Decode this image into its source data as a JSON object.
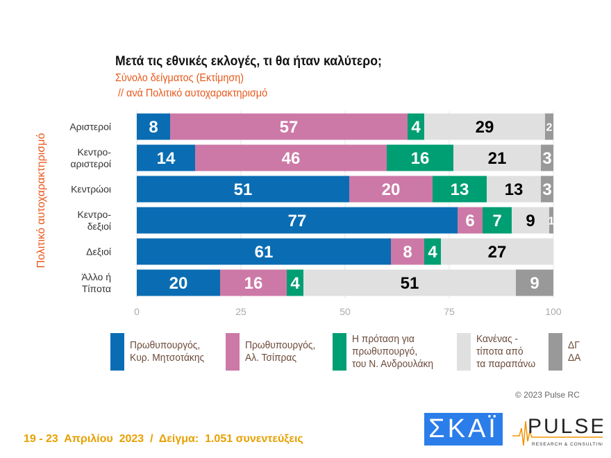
{
  "chart_data": {
    "type": "bar",
    "orientation": "horizontal",
    "stacked": true,
    "title": "Μετά τις εθνικές εκλογές, τι θα ήταν καλύτερο;",
    "subtitle": [
      "Σύνολο δείγματος  (Εκτίμηση)",
      " // ανά Πολιτικό αυτοχαρακτηρισμό"
    ],
    "ylabel": "Πολιτικό αυτοχαρακτηρισμό",
    "xlim": [
      0,
      100
    ],
    "xticks": [
      "0",
      "25",
      "50",
      "75",
      "100"
    ],
    "grid": true,
    "legend_position": "bottom",
    "categories": [
      [
        "Αριστεροί"
      ],
      [
        "Κεντρο-",
        "αριστεροί"
      ],
      [
        "Κεντρώοι"
      ],
      [
        "Κεντρο-",
        "δεξιοί"
      ],
      [
        "Δεξιοί"
      ],
      [
        "Άλλο ή",
        "Τίποτα"
      ]
    ],
    "series": [
      {
        "name": [
          "Πρωθυπουργός,",
          "Κυρ. Μητσοτάκης"
        ],
        "color": "#0a6db3",
        "label_color": "#ffffff",
        "values": [
          8,
          14,
          51,
          77,
          61,
          20
        ]
      },
      {
        "name": [
          "Πρωθυπουργός,",
          "Αλ. Τσίπρας"
        ],
        "color": "#cc79a7",
        "label_color": "#ffffff",
        "values": [
          57,
          46,
          20,
          6,
          8,
          16
        ]
      },
      {
        "name": [
          "Η πρόταση για",
          "πρωθυπουργό,",
          "του Ν. Ανδρουλάκη"
        ],
        "color": "#009e73",
        "label_color": "#ffffff",
        "values": [
          4,
          16,
          13,
          7,
          4,
          4
        ]
      },
      {
        "name": [
          "Κανένας -",
          "τίποτα από",
          "τα παραπάνω"
        ],
        "color": "#e0e0e0",
        "label_color": "#000000",
        "values": [
          29,
          21,
          13,
          9,
          27,
          51
        ]
      },
      {
        "name": [
          "ΔΓ",
          "ΔΑ"
        ],
        "color": "#999999",
        "label_color": "#ffffff",
        "values": [
          2,
          3,
          3,
          1,
          0,
          9
        ]
      }
    ]
  },
  "footer": "19 - 23  Απριλίου  2023  /  Δείγμα:  1.051 συνεντεύξεις",
  "copyright": "© 2023 Pulse RC",
  "logos": {
    "skai": "ΣΚΑΪ",
    "pulse": "PULSE",
    "pulse_tag": "RESEARCH & CONSULTING"
  }
}
